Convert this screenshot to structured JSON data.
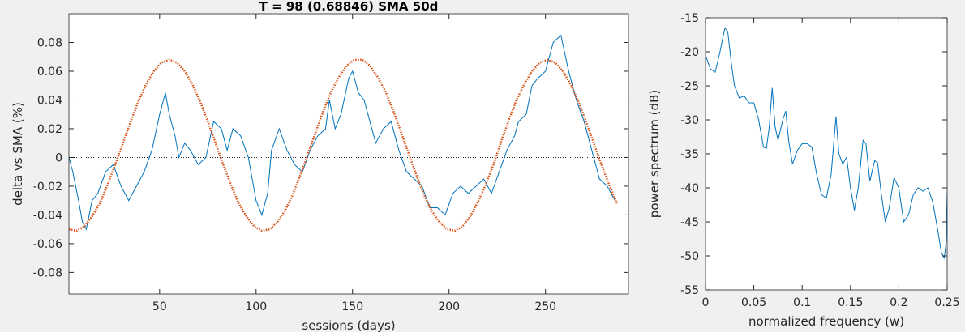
{
  "chart_data": [
    {
      "type": "line",
      "title": "T = 98 (0.68846)     SMA 50d",
      "xlabel": "sessions (days)",
      "ylabel": "delta vs SMA (%)",
      "xlim": [
        3,
        293
      ],
      "xticks": [
        50,
        100,
        150,
        200,
        250
      ],
      "ylim": [
        -0.095,
        0.1
      ],
      "yticks": [
        -0.08,
        -0.06,
        -0.04,
        -0.02,
        0,
        0.02,
        0.04,
        0.06,
        0.08
      ],
      "zero_line": true,
      "series": [
        {
          "color": "#0072bd",
          "line_style": "solid",
          "x": [
            3,
            5,
            8,
            10,
            12,
            15,
            18,
            22,
            26,
            30,
            34,
            38,
            42,
            46,
            50,
            53,
            55,
            58,
            60,
            63,
            66,
            70,
            74,
            78,
            82,
            85,
            88,
            92,
            96,
            100,
            103,
            106,
            108,
            112,
            116,
            120,
            124,
            128,
            132,
            136,
            138,
            141,
            144,
            148,
            150,
            153,
            156,
            159,
            162,
            166,
            170,
            174,
            178,
            182,
            186,
            190,
            194,
            198,
            202,
            206,
            210,
            214,
            218,
            222,
            226,
            230,
            234,
            236,
            240,
            243,
            246,
            250,
            254,
            258,
            262,
            266,
            270,
            274,
            278,
            282,
            286
          ],
          "values": [
            0.0,
            -0.01,
            -0.03,
            -0.045,
            -0.05,
            -0.03,
            -0.025,
            -0.01,
            -0.005,
            -0.02,
            -0.03,
            -0.02,
            -0.01,
            0.005,
            0.03,
            0.045,
            0.03,
            0.015,
            0.0,
            0.01,
            0.005,
            -0.005,
            0.0,
            0.025,
            0.02,
            0.005,
            0.02,
            0.015,
            0.0,
            -0.03,
            -0.04,
            -0.025,
            0.005,
            0.02,
            0.005,
            -0.005,
            -0.01,
            0.005,
            0.015,
            0.02,
            0.04,
            0.02,
            0.03,
            0.055,
            0.06,
            0.045,
            0.04,
            0.025,
            0.01,
            0.02,
            0.025,
            0.005,
            -0.01,
            -0.015,
            -0.02,
            -0.035,
            -0.035,
            -0.04,
            -0.025,
            -0.02,
            -0.025,
            -0.02,
            -0.015,
            -0.025,
            -0.01,
            0.005,
            0.015,
            0.025,
            0.03,
            0.05,
            0.055,
            0.06,
            0.08,
            0.085,
            0.06,
            0.04,
            0.025,
            0.005,
            -0.015,
            -0.02,
            -0.03
          ]
        },
        {
          "color": "#d95319",
          "line_style": "dotted",
          "x": [
            3,
            7,
            11,
            15,
            19,
            23,
            27,
            31,
            35,
            39,
            43,
            47,
            51,
            55,
            59,
            63,
            67,
            71,
            75,
            79,
            83,
            87,
            91,
            95,
            99,
            103,
            107,
            111,
            115,
            119,
            123,
            127,
            131,
            135,
            139,
            143,
            147,
            151,
            155,
            159,
            163,
            167,
            171,
            175,
            179,
            183,
            187,
            191,
            195,
            199,
            203,
            207,
            211,
            215,
            219,
            223,
            227,
            231,
            235,
            239,
            243,
            247,
            251,
            255,
            259,
            263,
            267,
            271,
            275,
            279,
            283,
            287
          ],
          "values": [
            -0.05,
            -0.051,
            -0.048,
            -0.041,
            -0.032,
            -0.019,
            -0.005,
            0.01,
            0.025,
            0.039,
            0.051,
            0.06,
            0.066,
            0.068,
            0.066,
            0.06,
            0.051,
            0.039,
            0.025,
            0.01,
            -0.005,
            -0.019,
            -0.032,
            -0.041,
            -0.048,
            -0.051,
            -0.05,
            -0.045,
            -0.037,
            -0.026,
            -0.012,
            0.003,
            0.018,
            0.033,
            0.046,
            0.056,
            0.064,
            0.068,
            0.068,
            0.064,
            0.056,
            0.046,
            0.033,
            0.018,
            0.003,
            -0.012,
            -0.026,
            -0.037,
            -0.045,
            -0.05,
            -0.051,
            -0.048,
            -0.041,
            -0.031,
            -0.019,
            -0.005,
            0.011,
            0.026,
            0.04,
            0.051,
            0.06,
            0.066,
            0.068,
            0.066,
            0.06,
            0.051,
            0.039,
            0.025,
            0.01,
            -0.005,
            -0.019,
            -0.032
          ]
        }
      ]
    },
    {
      "type": "line",
      "xlabel": "normalized frequency (w)",
      "ylabel": "power spectrum (dB)",
      "xlim": [
        0,
        0.25
      ],
      "xticks": [
        0,
        0.05,
        0.1,
        0.15,
        0.2,
        0.25
      ],
      "ylim": [
        -55,
        -15
      ],
      "yticks": [
        -55,
        -50,
        -45,
        -40,
        -35,
        -30,
        -25,
        -20,
        -15
      ],
      "series": [
        {
          "color": "#0072bd",
          "line_style": "solid",
          "x": [
            0,
            0.005,
            0.01,
            0.015,
            0.02,
            0.023,
            0.027,
            0.03,
            0.035,
            0.04,
            0.045,
            0.05,
            0.055,
            0.06,
            0.063,
            0.066,
            0.069,
            0.072,
            0.075,
            0.08,
            0.083,
            0.086,
            0.09,
            0.095,
            0.1,
            0.105,
            0.11,
            0.115,
            0.12,
            0.125,
            0.13,
            0.135,
            0.138,
            0.142,
            0.146,
            0.15,
            0.154,
            0.158,
            0.163,
            0.166,
            0.17,
            0.175,
            0.178,
            0.182,
            0.186,
            0.19,
            0.195,
            0.2,
            0.205,
            0.21,
            0.215,
            0.22,
            0.225,
            0.23,
            0.235,
            0.24,
            0.244,
            0.247,
            0.249,
            0.25
          ],
          "values": [
            -20.5,
            -22.5,
            -23,
            -20,
            -16.5,
            -17,
            -22,
            -25,
            -26.8,
            -26.5,
            -27.5,
            -27.5,
            -30,
            -34,
            -34.2,
            -31,
            -25.3,
            -31,
            -33,
            -30,
            -28.7,
            -33,
            -36.5,
            -34.5,
            -33.5,
            -33.5,
            -34,
            -38,
            -41,
            -41.5,
            -38,
            -29.5,
            -35,
            -36.5,
            -35.5,
            -40,
            -43.3,
            -40,
            -33,
            -33.5,
            -39,
            -36,
            -36.3,
            -41,
            -45,
            -43,
            -38.5,
            -40,
            -45,
            -44,
            -41,
            -40,
            -40.5,
            -40,
            -42,
            -46,
            -49.5,
            -50.3,
            -48,
            -40.5
          ]
        }
      ]
    }
  ]
}
